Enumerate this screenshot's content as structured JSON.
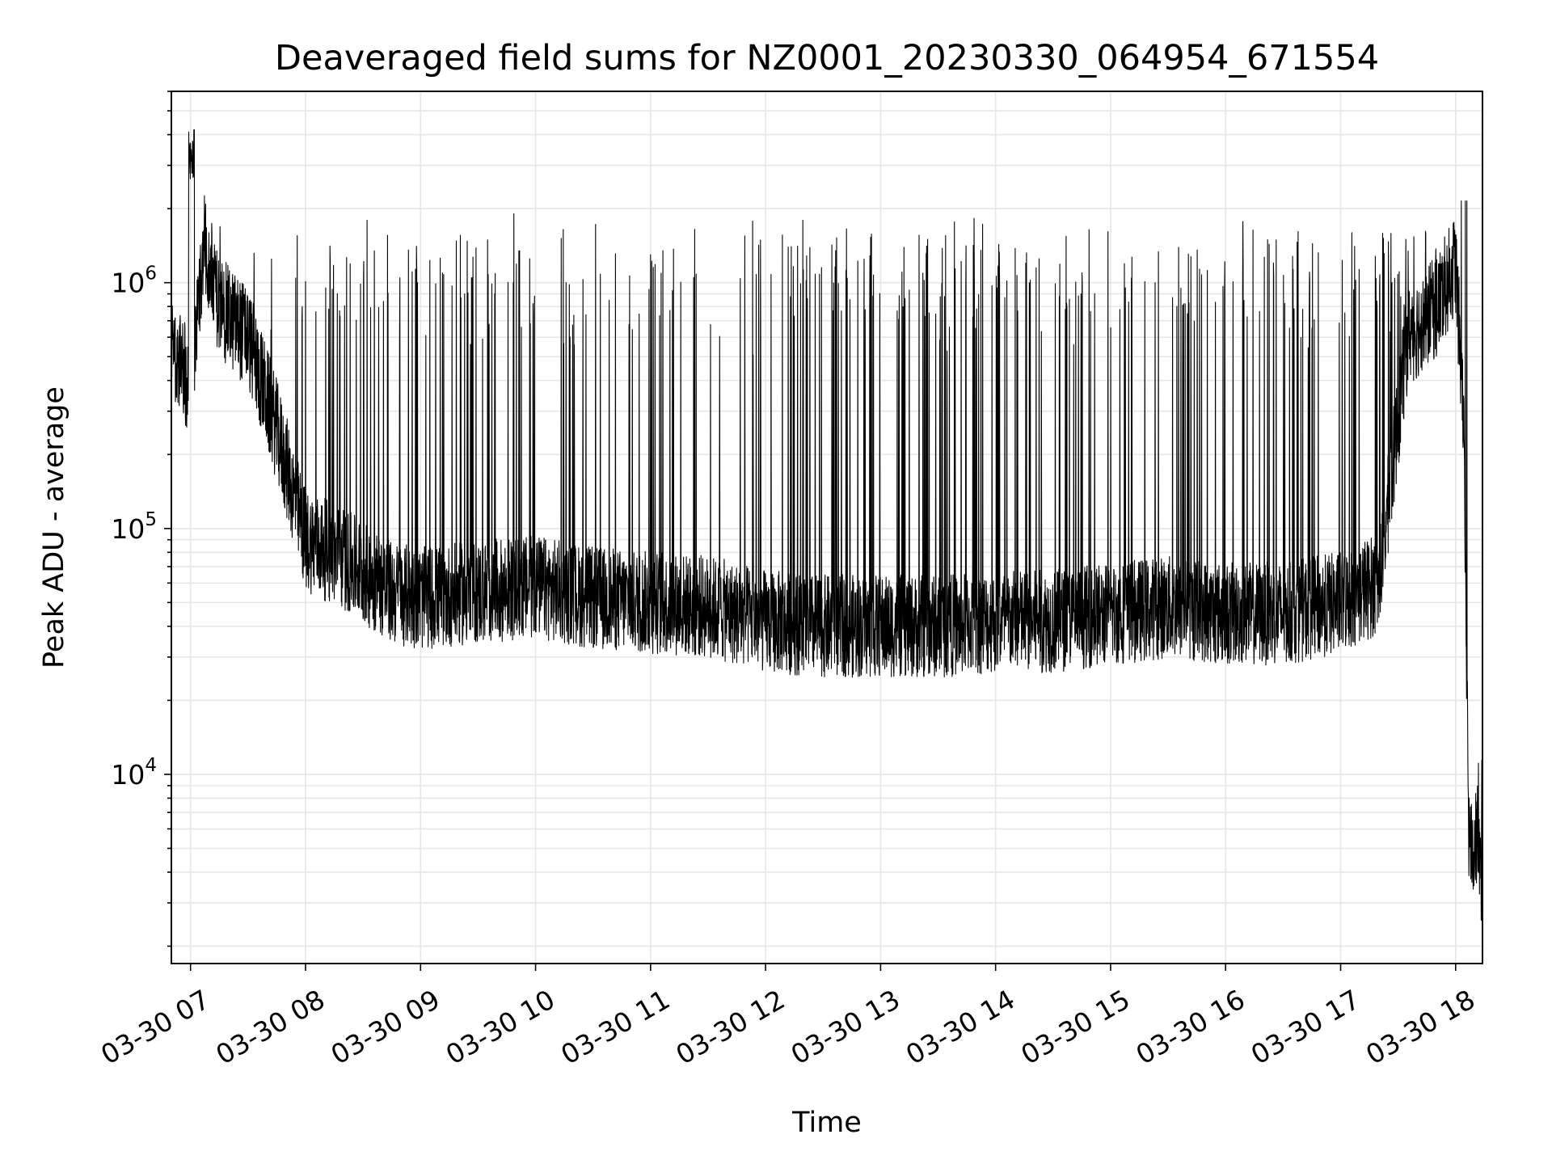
{
  "chart_data": {
    "type": "line",
    "title": "Deaveraged field sums for NZ0001_20230330_064954_671554",
    "xlabel": "Time",
    "ylabel": "Peak ADU - average",
    "yscale": "log",
    "xlim": [
      "2023-03-30 06:50",
      "2023-03-30 18:14"
    ],
    "ylim": [
      1700,
      6000000
    ],
    "grid": true,
    "line_color": "#000000",
    "grid_color": "#e6e6e6",
    "x_ticks": [
      {
        "t": "2023-03-30 07:00",
        "label": "03-30 07"
      },
      {
        "t": "2023-03-30 08:00",
        "label": "03-30 08"
      },
      {
        "t": "2023-03-30 09:00",
        "label": "03-30 09"
      },
      {
        "t": "2023-03-30 10:00",
        "label": "03-30 10"
      },
      {
        "t": "2023-03-30 11:00",
        "label": "03-30 11"
      },
      {
        "t": "2023-03-30 12:00",
        "label": "03-30 12"
      },
      {
        "t": "2023-03-30 13:00",
        "label": "03-30 13"
      },
      {
        "t": "2023-03-30 14:00",
        "label": "03-30 14"
      },
      {
        "t": "2023-03-30 15:00",
        "label": "03-30 15"
      },
      {
        "t": "2023-03-30 16:00",
        "label": "03-30 16"
      },
      {
        "t": "2023-03-30 17:00",
        "label": "03-30 17"
      },
      {
        "t": "2023-03-30 18:00",
        "label": "03-30 18"
      }
    ],
    "y_ticks": [
      {
        "value": 10000,
        "base": "10",
        "exp": "4"
      },
      {
        "value": 100000,
        "base": "10",
        "exp": "5"
      },
      {
        "value": 1000000,
        "base": "10",
        "exp": "6"
      }
    ],
    "x": [
      "2023-03-30 06:50",
      "2023-03-30 07:00",
      "2023-03-30 07:07",
      "2023-03-30 07:15",
      "2023-03-30 07:30",
      "2023-03-30 07:45",
      "2023-03-30 08:00",
      "2023-03-30 08:20",
      "2023-03-30 08:45",
      "2023-03-30 09:00",
      "2023-03-30 09:30",
      "2023-03-30 10:00",
      "2023-03-30 10:30",
      "2023-03-30 11:00",
      "2023-03-30 11:30",
      "2023-03-30 12:00",
      "2023-03-30 12:30",
      "2023-03-30 13:00",
      "2023-03-30 13:30",
      "2023-03-30 14:00",
      "2023-03-30 14:30",
      "2023-03-30 15:00",
      "2023-03-30 15:30",
      "2023-03-30 16:00",
      "2023-03-30 16:30",
      "2023-03-30 17:00",
      "2023-03-30 17:20",
      "2023-03-30 17:35",
      "2023-03-30 17:50",
      "2023-03-30 18:00",
      "2023-03-30 18:04",
      "2023-03-30 18:07",
      "2023-03-30 18:14"
    ],
    "baseline": [
      550000,
      380000,
      1500000,
      800000,
      600000,
      250000,
      90000,
      75000,
      55000,
      52000,
      55000,
      58000,
      52000,
      50000,
      48000,
      42000,
      40000,
      40000,
      40000,
      42000,
      42000,
      45000,
      48000,
      45000,
      45000,
      50000,
      60000,
      600000,
      800000,
      1200000,
      300000,
      5000,
      5500
    ],
    "spike_peak": 1500000,
    "max_peak": 4300000,
    "min_trough": 2400
  }
}
